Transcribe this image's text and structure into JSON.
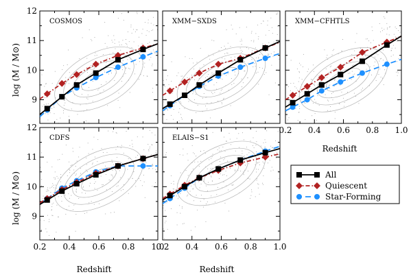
{
  "figure": {
    "ylabel": "log (M / M⊙)",
    "xlabel": "Redshift"
  },
  "legend": {
    "items": [
      {
        "label": "All",
        "color": "#000000",
        "marker": "square",
        "dash": "solid"
      },
      {
        "label": "Quiescent",
        "color": "#b22222",
        "marker": "diamond",
        "dash": "dashdot"
      },
      {
        "label": "Star-Forming",
        "color": "#1e90ff",
        "marker": "circle",
        "dash": "dashed"
      }
    ]
  },
  "chart_data": [
    {
      "type": "line",
      "title": "COSMOS",
      "xlim": [
        0.2,
        1.0
      ],
      "ylim": [
        8.2,
        12.0
      ],
      "x_ticks": [
        0.2,
        0.4,
        0.6,
        0.8,
        1.0
      ],
      "y_ticks": [
        9,
        10,
        11,
        12
      ],
      "x": [
        0.25,
        0.35,
        0.45,
        0.58,
        0.73,
        0.9
      ],
      "series": [
        {
          "name": "All",
          "values": [
            8.7,
            9.1,
            9.5,
            9.9,
            10.35,
            10.7
          ]
        },
        {
          "name": "Quiescent",
          "values": [
            9.2,
            9.55,
            9.85,
            10.2,
            10.5,
            10.75
          ]
        },
        {
          "name": "Star-Forming",
          "values": [
            8.65,
            9.1,
            9.4,
            9.75,
            10.1,
            10.45
          ]
        }
      ]
    },
    {
      "type": "line",
      "title": "XMM−SXDS",
      "xlim": [
        0.2,
        1.0
      ],
      "ylim": [
        8.2,
        12.0
      ],
      "x_ticks": [
        0.2,
        0.4,
        0.6,
        0.8,
        1.0
      ],
      "y_ticks": [
        9,
        10,
        11,
        12
      ],
      "x": [
        0.25,
        0.35,
        0.45,
        0.58,
        0.73,
        0.9
      ],
      "series": [
        {
          "name": "All",
          "values": [
            8.85,
            9.15,
            9.5,
            9.9,
            10.35,
            10.75
          ]
        },
        {
          "name": "Quiescent",
          "values": [
            9.3,
            9.6,
            9.9,
            10.2,
            10.4,
            10.75
          ]
        },
        {
          "name": "Star-Forming",
          "values": [
            8.8,
            9.15,
            9.45,
            9.8,
            10.1,
            10.4
          ]
        }
      ]
    },
    {
      "type": "line",
      "title": "XMM−CFHTLS",
      "xlim": [
        0.2,
        1.0
      ],
      "ylim": [
        8.2,
        12.0
      ],
      "x_ticks": [
        0.2,
        0.4,
        0.6,
        0.8,
        1.0
      ],
      "y_ticks": [
        9,
        10,
        11,
        12
      ],
      "x": [
        0.25,
        0.35,
        0.45,
        0.58,
        0.73,
        0.9
      ],
      "series": [
        {
          "name": "All",
          "values": [
            8.9,
            9.2,
            9.5,
            9.85,
            10.3,
            10.85
          ]
        },
        {
          "name": "Quiescent",
          "values": [
            9.15,
            9.45,
            9.75,
            10.1,
            10.6,
            10.95
          ]
        },
        {
          "name": "Star-Forming",
          "values": [
            8.75,
            9.0,
            9.3,
            9.6,
            9.9,
            10.2
          ]
        }
      ]
    },
    {
      "type": "line",
      "title": "CDFS",
      "xlim": [
        0.2,
        1.0
      ],
      "ylim": [
        8.2,
        12.0
      ],
      "x_ticks": [
        0.2,
        0.4,
        0.6,
        0.8,
        1.0
      ],
      "y_ticks": [
        9,
        10,
        11,
        12
      ],
      "x": [
        0.25,
        0.35,
        0.45,
        0.58,
        0.73,
        0.9
      ],
      "series": [
        {
          "name": "All",
          "values": [
            9.55,
            9.85,
            10.1,
            10.4,
            10.7,
            10.95
          ]
        },
        {
          "name": "Quiescent",
          "values": [
            9.6,
            9.9,
            10.15,
            10.45,
            10.7,
            10.95
          ]
        },
        {
          "name": "Star-Forming",
          "values": [
            9.6,
            9.95,
            10.2,
            10.5,
            10.7,
            10.7
          ]
        }
      ]
    },
    {
      "type": "line",
      "title": "ELAIS−S1",
      "xlim": [
        0.2,
        1.0
      ],
      "ylim": [
        8.2,
        12.0
      ],
      "x_ticks": [
        0.2,
        0.4,
        0.6,
        0.8,
        1.0
      ],
      "y_ticks": [
        9,
        10,
        11,
        12
      ],
      "x": [
        0.25,
        0.35,
        0.45,
        0.58,
        0.73,
        0.9
      ],
      "series": [
        {
          "name": "All",
          "values": [
            9.7,
            10.0,
            10.3,
            10.6,
            10.9,
            11.15
          ]
        },
        {
          "name": "Quiescent",
          "values": [
            9.75,
            10.05,
            10.3,
            10.55,
            10.8,
            11.0
          ]
        },
        {
          "name": "Star-Forming",
          "values": [
            9.6,
            9.95,
            10.3,
            10.6,
            10.9,
            11.2
          ]
        }
      ]
    }
  ]
}
